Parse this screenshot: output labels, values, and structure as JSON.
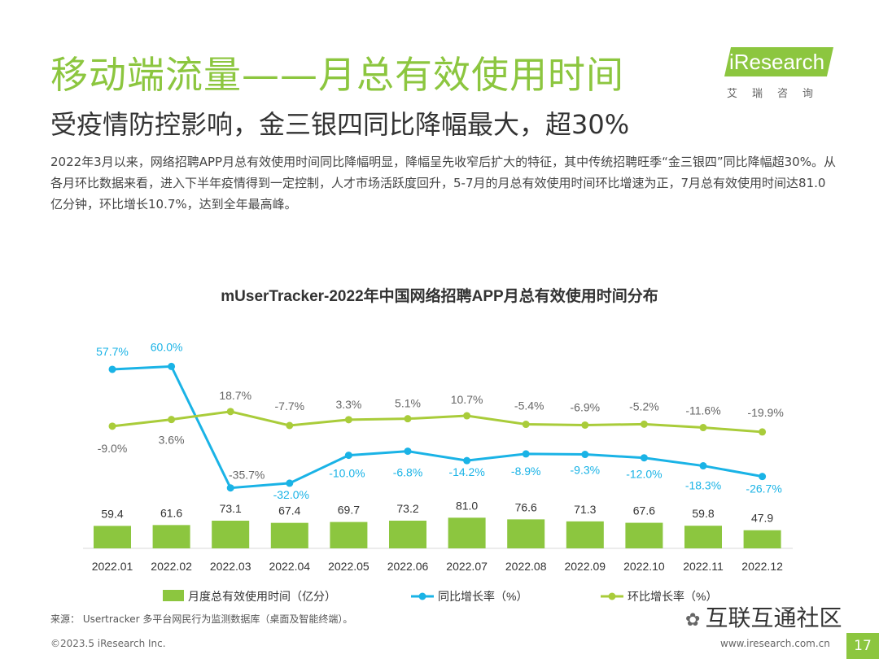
{
  "header": {
    "title": "移动端流量——月总有效使用时间",
    "subtitle": "受疫情防控影响，金三银四同比降幅最大，超30%",
    "description": "2022年3月以来，网络招聘APP月总有效使用时间同比降幅明显，降幅呈先收窄后扩大的特征，其中传统招聘旺季“金三银四”同比降幅超30%。从各月环比数据来看，进入下半年疫情得到一定控制，人才市场活跃度回升，5-7月的月总有效使用时间环比增速为正，7月总有效使用时间达81.0亿分钟，环比增长10.7%，达到全年最高峰。"
  },
  "logo": {
    "main": "iResearch",
    "sub": "艾瑞咨询"
  },
  "footer": {
    "source": "来源：  Usertracker 多平台网民行为监测数据库（桌面及智能终端）。",
    "copyright": "©2023.5 iResearch Inc.",
    "site": "www.iresearch.com.cn",
    "page": "17",
    "watermark": "互联互通社区"
  },
  "colors": {
    "accent": "#8cc63f",
    "bar": "#8cc63f",
    "yoy": "#1ab3e6",
    "mom": "#a9cc3a"
  },
  "chart_data": {
    "type": "bar",
    "title": "mUserTracker-2022年中国网络招聘APP月总有效使用时间分布",
    "categories": [
      "2022.01",
      "2022.02",
      "2022.03",
      "2022.04",
      "2022.05",
      "2022.06",
      "2022.07",
      "2022.08",
      "2022.09",
      "2022.10",
      "2022.11",
      "2022.12"
    ],
    "series": [
      {
        "name": "月度总有效使用时间（亿分）",
        "type": "bar",
        "values": [
          59.4,
          61.6,
          73.1,
          67.4,
          69.7,
          73.2,
          81.0,
          76.6,
          71.3,
          67.6,
          59.8,
          47.9
        ],
        "labels": [
          "59.4",
          "61.6",
          "73.1",
          "67.4",
          "69.7",
          "73.2",
          "81.0",
          "76.6",
          "71.3",
          "67.6",
          "59.8",
          "47.9"
        ]
      },
      {
        "name": "同比增长率（%）",
        "type": "line",
        "values": [
          57.7,
          60.0,
          -35.7,
          -32.0,
          -10.0,
          -6.8,
          -14.2,
          -8.9,
          -9.3,
          -12.0,
          -18.3,
          -26.7
        ],
        "labels": [
          "57.7%",
          "60.0%",
          "-35.7%",
          "-32.0%",
          "-10.0%",
          "-6.8%",
          "-14.2%",
          "-8.9%",
          "-9.3%",
          "-12.0%",
          "-18.3%",
          "-26.7%"
        ]
      },
      {
        "name": "环比增长率（%）",
        "type": "line",
        "values": [
          -9.0,
          3.6,
          18.7,
          -7.7,
          3.3,
          5.1,
          10.7,
          -5.4,
          -6.9,
          -5.2,
          -11.6,
          -19.9
        ],
        "labels": [
          "-9.0%",
          "3.6%",
          "18.7%",
          "-7.7%",
          "3.3%",
          "5.1%",
          "10.7%",
          "-5.4%",
          "-6.9%",
          "-5.2%",
          "-11.6%",
          "-19.9%"
        ]
      }
    ]
  }
}
